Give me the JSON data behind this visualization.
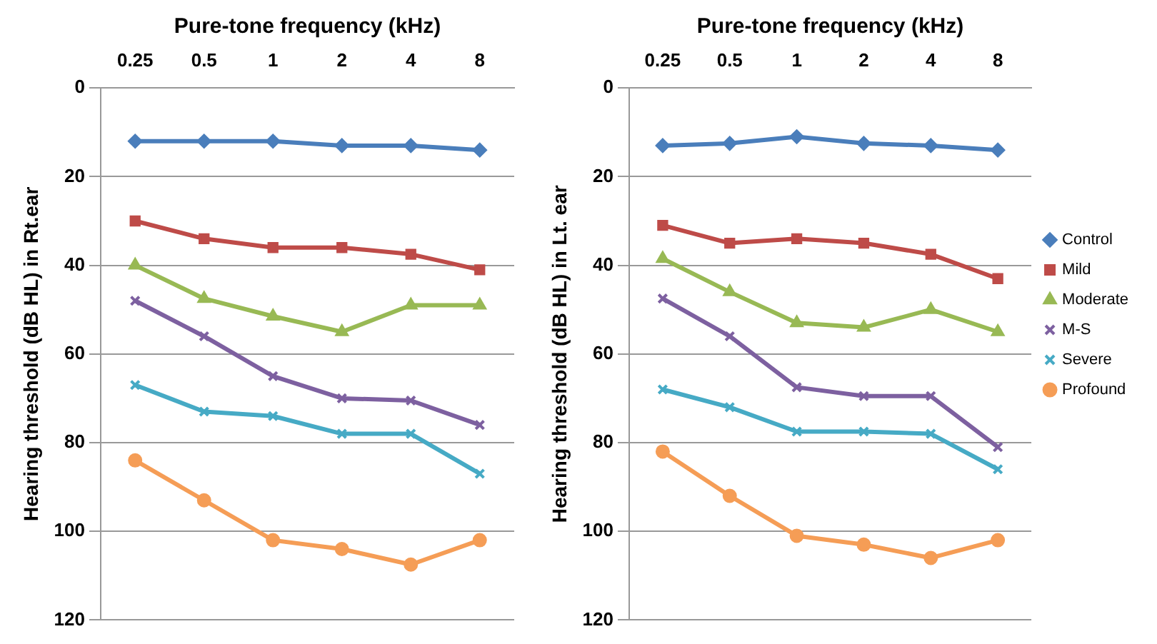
{
  "chart_data": [
    {
      "type": "line",
      "xlabel": "Pure-tone frequency (kHz)",
      "ylabel": "Hearing threshold (dB HL) in Rt.ear",
      "categories": [
        "0.25",
        "0.5",
        "1",
        "2",
        "4",
        "8"
      ],
      "ylim": [
        120,
        0
      ],
      "yticks": [
        0,
        20,
        40,
        60,
        80,
        100,
        120
      ],
      "grid": "y",
      "legend": false,
      "series": [
        {
          "color": "#4a7ebb",
          "marker": "diamond",
          "values": [
            12,
            12,
            12,
            13,
            13,
            14
          ]
        },
        {
          "color": "#be4b48",
          "marker": "square",
          "values": [
            30,
            34,
            36,
            36,
            37.5,
            41
          ]
        },
        {
          "color": "#98b954",
          "marker": "triangle",
          "values": [
            40,
            47.5,
            51.5,
            55,
            49,
            49
          ]
        },
        {
          "color": "#7d60a0",
          "marker": "cross",
          "values": [
            48,
            56,
            65,
            70,
            70.5,
            76
          ]
        },
        {
          "color": "#46aac5",
          "marker": "cross",
          "values": [
            67,
            73,
            74,
            78,
            78,
            87
          ]
        },
        {
          "color": "#f59d56",
          "marker": "circle",
          "values": [
            84,
            93,
            102,
            104,
            107.5,
            102
          ]
        }
      ]
    },
    {
      "type": "line",
      "xlabel": "Pure-tone frequency (kHz)",
      "ylabel": "Hearing threshold (dB HL) in Lt. ear",
      "categories": [
        "0.25",
        "0.5",
        "1",
        "2",
        "4",
        "8"
      ],
      "ylim": [
        120,
        0
      ],
      "yticks": [
        0,
        20,
        40,
        60,
        80,
        100,
        120
      ],
      "grid": "y",
      "legend": "right",
      "series": [
        {
          "name": "Control",
          "color": "#4a7ebb",
          "marker": "diamond",
          "values": [
            13,
            12.5,
            11,
            12.5,
            13,
            14
          ]
        },
        {
          "name": "Mild",
          "color": "#be4b48",
          "marker": "square",
          "values": [
            31,
            35,
            34,
            35,
            37.5,
            43
          ]
        },
        {
          "name": "Moderate",
          "color": "#98b954",
          "marker": "triangle",
          "values": [
            38.5,
            46,
            53,
            54,
            50,
            55
          ]
        },
        {
          "name": "M-S",
          "color": "#7d60a0",
          "marker": "cross",
          "values": [
            47.5,
            56,
            67.5,
            69.5,
            69.5,
            81
          ]
        },
        {
          "name": "Severe",
          "color": "#46aac5",
          "marker": "cross",
          "values": [
            68,
            72,
            77.5,
            77.5,
            78,
            86
          ]
        },
        {
          "name": "Profound",
          "color": "#f59d56",
          "marker": "circle",
          "values": [
            82,
            92,
            101,
            103,
            106,
            102
          ]
        }
      ]
    }
  ]
}
